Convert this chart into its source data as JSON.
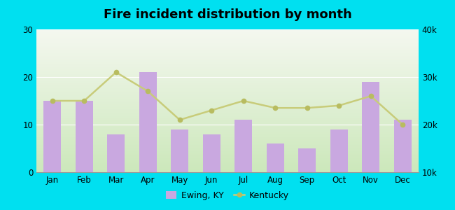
{
  "months": [
    "Jan",
    "Feb",
    "Mar",
    "Apr",
    "May",
    "Jun",
    "Jul",
    "Aug",
    "Sep",
    "Oct",
    "Nov",
    "Dec"
  ],
  "bar_values": [
    15,
    15,
    8,
    21,
    9,
    8,
    11,
    6,
    5,
    9,
    19,
    11
  ],
  "line_values": [
    25000,
    25000,
    31000,
    27000,
    21000,
    23000,
    25000,
    23500,
    23500,
    24000,
    26000,
    20000
  ],
  "bar_color": "#c9a8e0",
  "line_color": "#c8cc7a",
  "line_marker_color": "#b8bc60",
  "background_outer": "#00e0f0",
  "background_plot_top": "#f5f8f0",
  "background_plot_bottom": "#cce8bb",
  "title": "Fire incident distribution by month",
  "legend_ewing": "Ewing, KY",
  "legend_kentucky": "Kentucky",
  "ylim_left": [
    0,
    30
  ],
  "ylim_right": [
    10000,
    40000
  ],
  "yticks_left": [
    0,
    10,
    20,
    30
  ],
  "yticks_right": [
    10000,
    20000,
    30000,
    40000
  ]
}
